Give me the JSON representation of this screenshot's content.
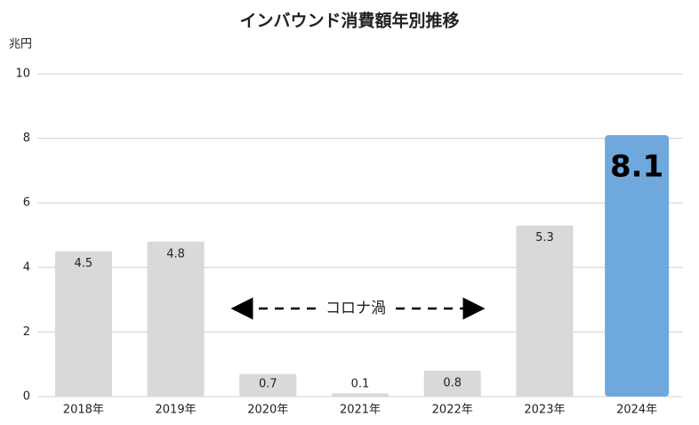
{
  "chart_data": {
    "type": "bar",
    "title": "インバウンド消費額年別推移",
    "y_label": "兆円",
    "categories": [
      "2018年",
      "2019年",
      "2020年",
      "2021年",
      "2022年",
      "2023年",
      "2024年"
    ],
    "values": [
      4.5,
      4.8,
      0.7,
      0.1,
      0.8,
      5.3,
      8.1
    ],
    "colors": [
      "#d9d9d9",
      "#d9d9d9",
      "#d9d9d9",
      "#d9d9d9",
      "#d9d9d9",
      "#d9d9d9",
      "#6fa8dc"
    ],
    "highlight_index": 6,
    "annotation": "コロナ渦",
    "ylim": [
      0,
      10
    ],
    "yticks": [
      0,
      2,
      4,
      6,
      8,
      10
    ],
    "grid": true
  }
}
